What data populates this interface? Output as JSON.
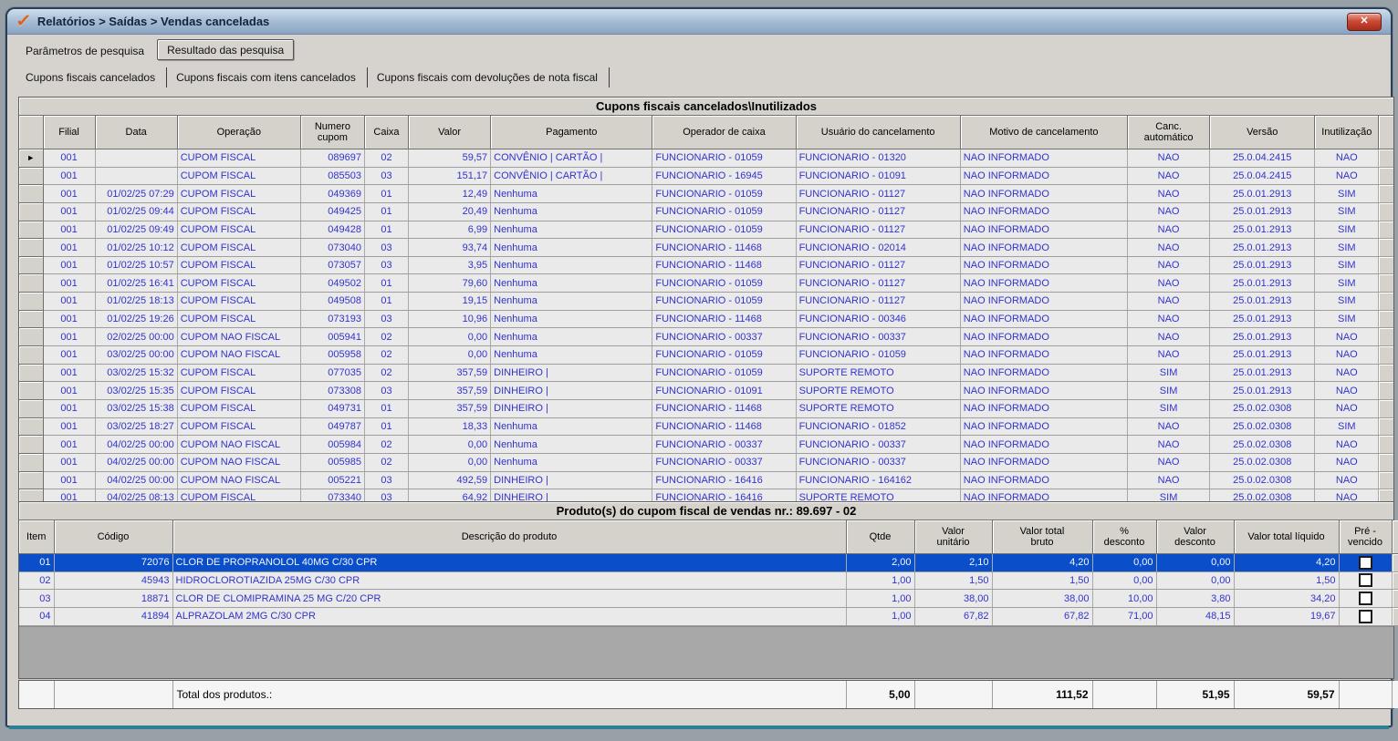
{
  "window": {
    "title": "Relatórios > Saídas > Vendas canceladas"
  },
  "icons": {
    "app_icon": "✓",
    "close_icon": "✕",
    "row_indicator": "►"
  },
  "colors": {
    "data_text": "#3333cc",
    "selection": "#0b4ec9",
    "close_red": "#c0392b",
    "titlebar_top": "#cfdded",
    "titlebar_bottom": "#8aa4c1",
    "teal_line": "#2e7f93"
  },
  "tabs": {
    "parametros": "Parâmetros de pesquisa",
    "resultado": "Resultado das pesquisa"
  },
  "subtabs": [
    "Cupons fiscais cancelados",
    "Cupons fiscais com itens cancelados",
    "Cupons fiscais com devoluções de nota fiscal"
  ],
  "grid1": {
    "title": "Cupons fiscais cancelados\\Inutilizados",
    "columns": [
      "Filial",
      "Data",
      "Operação",
      "Numero\ncupom",
      "Caixa",
      "Valor",
      "Pagamento",
      "Operador de caixa",
      "Usuário do cancelamento",
      "Motivo de cancelamento",
      "Canc.\nautomático",
      "Versão",
      "Inutilização"
    ],
    "rows": [
      [
        "001",
        "",
        "CUPOM FISCAL",
        "089697",
        "02",
        "59,57",
        "CONVÊNIO | CARTÃO |",
        "FUNCIONARIO - 01059",
        "FUNCIONARIO - 01320",
        "NAO INFORMADO",
        "NAO",
        "25.0.04.2415",
        "NAO"
      ],
      [
        "001",
        "",
        "CUPOM FISCAL",
        "085503",
        "03",
        "151,17",
        "CONVÊNIO | CARTÃO |",
        "FUNCIONARIO - 16945",
        "FUNCIONARIO - 01091",
        "NAO INFORMADO",
        "NAO",
        "25.0.04.2415",
        "NAO"
      ],
      [
        "001",
        "01/02/25 07:29",
        "CUPOM FISCAL",
        "049369",
        "01",
        "12,49",
        "Nenhuma",
        "FUNCIONARIO - 01059",
        "FUNCIONARIO - 01127",
        "NAO INFORMADO",
        "NAO",
        "25.0.01.2913",
        "SIM"
      ],
      [
        "001",
        "01/02/25 09:44",
        "CUPOM FISCAL",
        "049425",
        "01",
        "20,49",
        "Nenhuma",
        "FUNCIONARIO - 01059",
        "FUNCIONARIO - 01127",
        "NAO INFORMADO",
        "NAO",
        "25.0.01.2913",
        "SIM"
      ],
      [
        "001",
        "01/02/25 09:49",
        "CUPOM FISCAL",
        "049428",
        "01",
        "6,99",
        "Nenhuma",
        "FUNCIONARIO - 01059",
        "FUNCIONARIO - 01127",
        "NAO INFORMADO",
        "NAO",
        "25.0.01.2913",
        "SIM"
      ],
      [
        "001",
        "01/02/25 10:12",
        "CUPOM FISCAL",
        "073040",
        "03",
        "93,74",
        "Nenhuma",
        "FUNCIONARIO - 11468",
        "FUNCIONARIO - 02014",
        "NAO INFORMADO",
        "NAO",
        "25.0.01.2913",
        "SIM"
      ],
      [
        "001",
        "01/02/25 10:57",
        "CUPOM FISCAL",
        "073057",
        "03",
        "3,95",
        "Nenhuma",
        "FUNCIONARIO - 11468",
        "FUNCIONARIO - 01127",
        "NAO INFORMADO",
        "NAO",
        "25.0.01.2913",
        "SIM"
      ],
      [
        "001",
        "01/02/25 16:41",
        "CUPOM FISCAL",
        "049502",
        "01",
        "79,60",
        "Nenhuma",
        "FUNCIONARIO - 01059",
        "FUNCIONARIO - 01127",
        "NAO INFORMADO",
        "NAO",
        "25.0.01.2913",
        "SIM"
      ],
      [
        "001",
        "01/02/25 18:13",
        "CUPOM FISCAL",
        "049508",
        "01",
        "19,15",
        "Nenhuma",
        "FUNCIONARIO - 01059",
        "FUNCIONARIO - 01127",
        "NAO INFORMADO",
        "NAO",
        "25.0.01.2913",
        "SIM"
      ],
      [
        "001",
        "01/02/25 19:26",
        "CUPOM FISCAL",
        "073193",
        "03",
        "10,96",
        "Nenhuma",
        "FUNCIONARIO - 11468",
        "FUNCIONARIO - 00346",
        "NAO INFORMADO",
        "NAO",
        "25.0.01.2913",
        "SIM"
      ],
      [
        "001",
        "02/02/25 00:00",
        "CUPOM NAO FISCAL",
        "005941",
        "02",
        "0,00",
        "Nenhuma",
        "FUNCIONARIO - 00337",
        "FUNCIONARIO - 00337",
        "NAO INFORMADO",
        "NAO",
        "25.0.01.2913",
        "NAO"
      ],
      [
        "001",
        "03/02/25 00:00",
        "CUPOM NAO FISCAL",
        "005958",
        "02",
        "0,00",
        "Nenhuma",
        "FUNCIONARIO - 01059",
        "FUNCIONARIO - 01059",
        "NAO INFORMADO",
        "NAO",
        "25.0.01.2913",
        "NAO"
      ],
      [
        "001",
        "03/02/25 15:32",
        "CUPOM FISCAL",
        "077035",
        "02",
        "357,59",
        "DINHEIRO |",
        "FUNCIONARIO - 01059",
        "SUPORTE REMOTO",
        "NAO INFORMADO",
        "SIM",
        "25.0.01.2913",
        "NAO"
      ],
      [
        "001",
        "03/02/25 15:35",
        "CUPOM FISCAL",
        "073308",
        "03",
        "357,59",
        "DINHEIRO |",
        "FUNCIONARIO - 01091",
        "SUPORTE REMOTO",
        "NAO INFORMADO",
        "SIM",
        "25.0.01.2913",
        "NAO"
      ],
      [
        "001",
        "03/02/25 15:38",
        "CUPOM FISCAL",
        "049731",
        "01",
        "357,59",
        "DINHEIRO |",
        "FUNCIONARIO - 11468",
        "SUPORTE REMOTO",
        "NAO INFORMADO",
        "SIM",
        "25.0.02.0308",
        "NAO"
      ],
      [
        "001",
        "03/02/25 18:27",
        "CUPOM FISCAL",
        "049787",
        "01",
        "18,33",
        "Nenhuma",
        "FUNCIONARIO - 11468",
        "FUNCIONARIO - 01852",
        "NAO INFORMADO",
        "NAO",
        "25.0.02.0308",
        "SIM"
      ],
      [
        "001",
        "04/02/25 00:00",
        "CUPOM NAO FISCAL",
        "005984",
        "02",
        "0,00",
        "Nenhuma",
        "FUNCIONARIO - 00337",
        "FUNCIONARIO - 00337",
        "NAO INFORMADO",
        "NAO",
        "25.0.02.0308",
        "NAO"
      ],
      [
        "001",
        "04/02/25 00:00",
        "CUPOM NAO FISCAL",
        "005985",
        "02",
        "0,00",
        "Nenhuma",
        "FUNCIONARIO - 00337",
        "FUNCIONARIO - 00337",
        "NAO INFORMADO",
        "NAO",
        "25.0.02.0308",
        "NAO"
      ],
      [
        "001",
        "04/02/25 00:00",
        "CUPOM NAO FISCAL",
        "005221",
        "03",
        "492,59",
        "DINHEIRO |",
        "FUNCIONARIO - 16416",
        "FUNCIONARIO - 164162",
        "NAO INFORMADO",
        "NAO",
        "25.0.02.0308",
        "NAO"
      ],
      [
        "001",
        "04/02/25 08:13",
        "CUPOM FISCAL",
        "073340",
        "03",
        "64,92",
        "DINHEIRO |",
        "FUNCIONARIO - 16416",
        "SUPORTE REMOTO",
        "NAO INFORMADO",
        "SIM",
        "25.0.02.0308",
        "NAO"
      ]
    ]
  },
  "grid2": {
    "title": "Produto(s) do cupom fiscal de vendas nr.: 89.697 - 02",
    "columns": [
      "Item",
      "Código",
      "Descrição do produto",
      "Qtde",
      "Valor\nunitário",
      "Valor total\nbruto",
      "%\ndesconto",
      "Valor\ndesconto",
      "Valor total líquido",
      "Pré -\nvencido"
    ],
    "rows": [
      [
        "01",
        "72076",
        "CLOR DE PROPRANOLOL 40MG C/30 CPR",
        "2,00",
        "2,10",
        "4,20",
        "0,00",
        "0,00",
        "4,20",
        ""
      ],
      [
        "02",
        "45943",
        "HIDROCLOROTIAZIDA 25MG C/30 CPR",
        "1,00",
        "1,50",
        "1,50",
        "0,00",
        "0,00",
        "1,50",
        ""
      ],
      [
        "03",
        "18871",
        "CLOR DE CLOMIPRAMINA 25 MG C/20 CPR",
        "1,00",
        "38,00",
        "38,00",
        "10,00",
        "3,80",
        "34,20",
        ""
      ],
      [
        "04",
        "41894",
        "ALPRAZOLAM 2MG C/30 CPR",
        "1,00",
        "67,82",
        "67,82",
        "71,00",
        "48,15",
        "19,67",
        ""
      ]
    ],
    "selected_row": 0,
    "total": [
      "",
      "",
      "Total dos produtos.:",
      "5,00",
      "",
      "111,52",
      "",
      "51,95",
      "59,57",
      ""
    ]
  }
}
